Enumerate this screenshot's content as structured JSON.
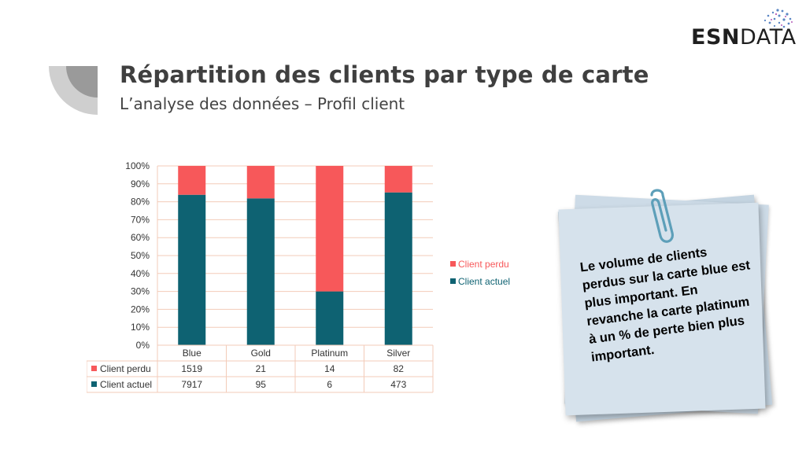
{
  "header": {
    "title": "Répartition des clients par type de carte",
    "subtitle": "L’analyse des données – Profil client"
  },
  "logo": {
    "bold": "ESN",
    "light": "DATA"
  },
  "note": {
    "text": "Le volume de clients perdus sur la carte blue est plus important. En revanche la carte platinum à un % de perte bien plus important."
  },
  "colors": {
    "perdu": "#f7585a",
    "actuel": "#0e6272",
    "grid": "#f3cbb8"
  },
  "chart_data": {
    "type": "bar",
    "stacked": "percent",
    "categories": [
      "Blue",
      "Gold",
      "Platinum",
      "Silver"
    ],
    "series": [
      {
        "name": "Client perdu",
        "values": [
          1519,
          21,
          14,
          82
        ]
      },
      {
        "name": "Client actuel",
        "values": [
          7917,
          95,
          6,
          473
        ]
      }
    ],
    "yticks": [
      "0%",
      "10%",
      "20%",
      "30%",
      "40%",
      "50%",
      "60%",
      "70%",
      "80%",
      "90%",
      "100%"
    ],
    "ylim": [
      0,
      100
    ],
    "legend_position": "right",
    "data_table": true,
    "grid": true
  }
}
